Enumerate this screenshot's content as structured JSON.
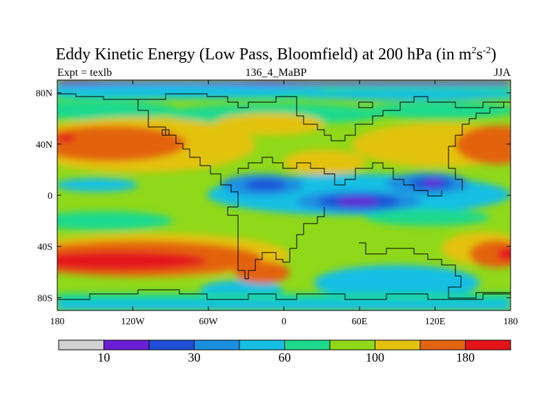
{
  "title": {
    "main": "Eddy Kinetic Energy (Low Pass, Bloomfield) at 200 hPa (in m",
    "sup1": "2",
    "mid": "s",
    "sup2": "-2",
    "end": ")"
  },
  "subtitle_left": "Expt = texlb",
  "subtitle_center": "136_4_MaBP",
  "subtitle_right": "JJA",
  "x_ticks": [
    "180",
    "120W",
    "60W",
    "0",
    "60E",
    "120E",
    "180"
  ],
  "y_ticks": [
    "80N",
    "40N",
    "0",
    "40S",
    "80S"
  ],
  "colorbar": {
    "colors": [
      "#d2d2d2",
      "#6a1fd6",
      "#1f4fd6",
      "#1a8fe0",
      "#17bfe3",
      "#1fd98e",
      "#8fd81a",
      "#e3c20f",
      "#e3640f",
      "#e3141a"
    ],
    "labels": [
      "10",
      "30",
      "60",
      "100",
      "180"
    ]
  },
  "chart_data": {
    "type": "heatmap",
    "title": "Eddy Kinetic Energy (Low Pass, Bloomfield) at 200 hPa (in m2s-2)",
    "subtitle": "136_4_MaBP",
    "season": "JJA",
    "experiment": "texlb",
    "x_range": [
      -180,
      180
    ],
    "y_range": [
      -90,
      90
    ],
    "x_tick_values": [
      -180,
      -120,
      -60,
      0,
      60,
      120,
      180
    ],
    "y_tick_values": [
      80,
      40,
      0,
      -40,
      -80
    ],
    "colorbar_labels": [
      10,
      30,
      60,
      100,
      180
    ]
  }
}
